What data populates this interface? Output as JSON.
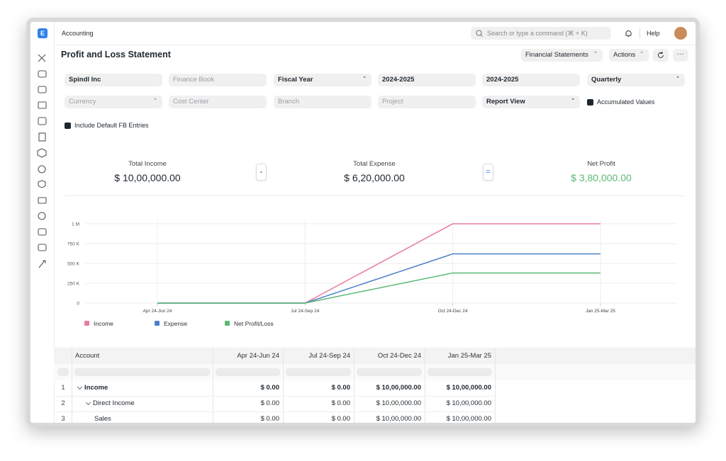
{
  "topbar": {
    "logo": "E",
    "breadcrumb": "Accounting",
    "search_placeholder": "Search or type a command (⌘ + K)",
    "help": "Help"
  },
  "page": {
    "title": "Profit and Loss Statement",
    "buttons": [
      "Financial Statements",
      "Actions"
    ]
  },
  "filters": {
    "row1": [
      "Spindl Inc",
      "Finance Book",
      "Fiscal Year",
      "2024-2025",
      "2024-2025",
      "Quarterly"
    ],
    "row2": [
      "Currency",
      "Cost Center",
      "Branch",
      "Project",
      "Report View"
    ],
    "checkboxes": [
      "Accumulated Values",
      "Include Default FB Entries"
    ]
  },
  "summary": {
    "items": [
      {
        "label": "Total Income",
        "value": "$ 10,00,000.00"
      },
      {
        "label": "Total Expense",
        "value": "$ 6,20,000.00"
      },
      {
        "label": "Net Profit",
        "value": "$ 3,80,000.00"
      }
    ],
    "operators": [
      "-",
      "="
    ]
  },
  "chart_data": {
    "type": "line",
    "categories": [
      "Apr 24-Jun 24",
      "Jul 24-Sep 24",
      "Oct 24-Dec 24",
      "Jan 25-Mar 25"
    ],
    "series": [
      {
        "name": "Income",
        "color": "#e97aa0",
        "values": [
          0,
          0,
          1000000,
          1000000
        ]
      },
      {
        "name": "Expense",
        "color": "#4a7fc8",
        "values": [
          0,
          0,
          620000,
          620000
        ]
      },
      {
        "name": "Net Profit/Loss",
        "color": "#5cb874",
        "values": [
          0,
          0,
          380000,
          380000
        ]
      }
    ],
    "ylim": [
      0,
      1000000
    ],
    "yticks": [
      0,
      {
        "value": 250000,
        "label": "250 K"
      },
      {
        "value": 500000,
        "label": "500 K"
      },
      {
        "value": 750000,
        "label": "750 K"
      },
      {
        "value": 1000000,
        "label": "1 M"
      }
    ],
    "grid": true
  },
  "table": {
    "columns": [
      "Account",
      "Apr 24-Jun 24",
      "Jul 24-Sep 24",
      "Oct 24-Dec 24",
      "Jan 25-Mar 25"
    ],
    "rows": [
      [
        "1",
        "Income",
        "$ 0.00",
        "$ 0.00",
        "$ 10,00,000.00",
        "$ 10,00,000.00"
      ],
      [
        "2",
        "Direct Income",
        "$ 0.00",
        "$ 0.00",
        "$ 10,00,000.00",
        "$ 10,00,000.00"
      ],
      [
        "3",
        "Sales",
        "$ 0.00",
        "$ 0.00",
        "$ 10,00,000.00",
        "$ 10,00,000.00"
      ]
    ]
  }
}
